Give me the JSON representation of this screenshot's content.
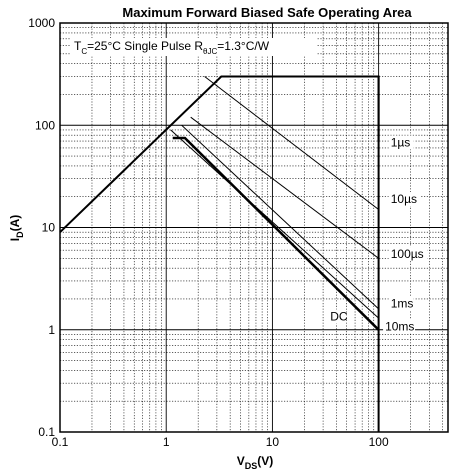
{
  "chart_data": {
    "type": "line",
    "title": "Maximum Forward Biased Safe Operating Area",
    "xlabel_main": "V",
    "xlabel_sub": "DS",
    "xlabel_unit": "(V)",
    "ylabel_main": "I",
    "ylabel_sub": "D",
    "ylabel_unit": "(A)",
    "xscale": "log",
    "yscale": "log",
    "xlim": [
      0.1,
      450
    ],
    "ylim": [
      0.1,
      1000
    ],
    "grid": true,
    "x_ticks": [
      {
        "value": 0.1,
        "label": "0.1"
      },
      {
        "value": 1,
        "label": "1"
      },
      {
        "value": 10,
        "label": "10"
      },
      {
        "value": 100,
        "label": "100"
      }
    ],
    "y_ticks": [
      {
        "value": 0.1,
        "label": "0.1"
      },
      {
        "value": 1,
        "label": "1"
      },
      {
        "value": 10,
        "label": "10"
      },
      {
        "value": 100,
        "label": "100"
      },
      {
        "value": 1000,
        "label": "1000"
      }
    ],
    "conditions": {
      "tc_main": "T",
      "tc_sub": "C",
      "tc_rest": "=25°C Single Pulse R",
      "r_sub": "θJC",
      "r_rest": "=1.3°C/W"
    },
    "series": [
      {
        "name": "1µs",
        "points": [
          [
            0.1,
            9
          ],
          [
            3.3,
            300
          ],
          [
            100,
            300
          ],
          [
            100,
            70
          ]
        ],
        "linewidth": 2
      },
      {
        "name": "10µs",
        "points": [
          [
            2.3,
            300
          ],
          [
            100,
            15
          ]
        ],
        "linewidth": 1
      },
      {
        "name": "100µs",
        "points": [
          [
            1.7,
            120
          ],
          [
            100,
            5
          ]
        ],
        "linewidth": 1
      },
      {
        "name": "1ms",
        "points": [
          [
            1.4,
            100
          ],
          [
            100,
            1.6
          ]
        ],
        "linewidth": 1
      },
      {
        "name": "10ms",
        "points": [
          [
            1.1,
            90
          ],
          [
            100,
            1.3
          ]
        ],
        "linewidth": 1
      },
      {
        "name": "DC",
        "points": [
          [
            1.15,
            75
          ],
          [
            1.5,
            75
          ],
          [
            100,
            1
          ]
        ],
        "linewidth": 2.5
      },
      {
        "name": "",
        "points": [
          [
            100,
            300
          ],
          [
            100,
            0.1
          ]
        ],
        "linewidth": 2
      }
    ],
    "annotations": [
      {
        "text": "1µs",
        "x": 130,
        "y": 68
      },
      {
        "text": "10µs",
        "x": 130,
        "y": 19
      },
      {
        "text": "100µs",
        "x": 130,
        "y": 5.5
      },
      {
        "text": "1ms",
        "x": 130,
        "y": 1.8
      },
      {
        "text": "10ms",
        "x": 115,
        "y": 1.08
      },
      {
        "text": "DC",
        "x": 35,
        "y": 1.35
      }
    ]
  }
}
